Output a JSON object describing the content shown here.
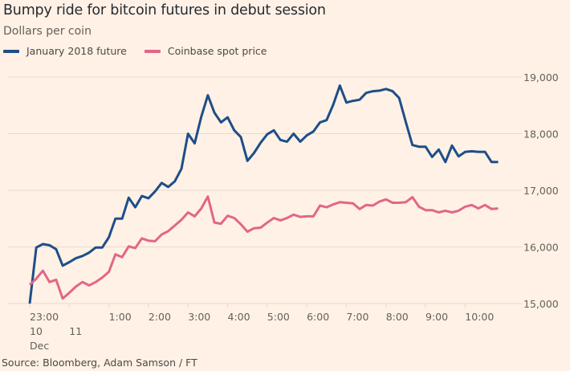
{
  "title": "Bumpy ride for bitcoin futures in debut session",
  "subtitle": "Dollars per coin",
  "source": "Source: Bloomberg, Adam Samson / FT",
  "colors": {
    "background": "#fff1e5",
    "future": "#1d4e89",
    "spot": "#e26688",
    "grid": "#e6d9ce"
  },
  "chart_data": {
    "type": "line",
    "title": "Bumpy ride for bitcoin futures in debut session",
    "ylabel": "Dollars per coin",
    "xlabel": "",
    "ylim": [
      15000,
      19000
    ],
    "yticks": [
      15000,
      16000,
      17000,
      18000,
      19000
    ],
    "ytick_labels": [
      "15,000",
      "16,000",
      "17,000",
      "18,000",
      "19,000"
    ],
    "y_axis_side": "right",
    "grid": true,
    "legend_position": "top-left",
    "x_unit": "hours since 23:00 on 10 Dec",
    "xlim": [
      0,
      12
    ],
    "xticks": [
      {
        "x": 0,
        "lines": [
          "23:00",
          "10",
          "Dec"
        ]
      },
      {
        "x": 1,
        "lines": [
          "",
          "11"
        ]
      },
      {
        "x": 2,
        "lines": [
          "1:00"
        ]
      },
      {
        "x": 3,
        "lines": [
          "2:00"
        ]
      },
      {
        "x": 4,
        "lines": [
          "3:00"
        ]
      },
      {
        "x": 5,
        "lines": [
          "4:00"
        ]
      },
      {
        "x": 6,
        "lines": [
          "5:00"
        ]
      },
      {
        "x": 7,
        "lines": [
          "6:00"
        ]
      },
      {
        "x": 8,
        "lines": [
          "7:00"
        ]
      },
      {
        "x": 9,
        "lines": [
          "8:00"
        ]
      },
      {
        "x": 10,
        "lines": [
          "9:00"
        ]
      },
      {
        "x": 11,
        "lines": [
          "10:00"
        ]
      }
    ],
    "x_step_hours": 0.1667,
    "series": [
      {
        "name": "January 2018 future",
        "key": "future",
        "values": [
          15000,
          15990,
          16050,
          16030,
          15960,
          15670,
          15730,
          15800,
          15840,
          15900,
          15990,
          15990,
          16170,
          16500,
          16500,
          16870,
          16700,
          16900,
          16860,
          16980,
          17130,
          17060,
          17160,
          17380,
          18000,
          17830,
          18300,
          18680,
          18370,
          18200,
          18290,
          18060,
          17940,
          17520,
          17660,
          17840,
          17990,
          18060,
          17890,
          17860,
          18000,
          17860,
          17970,
          18040,
          18200,
          18240,
          18510,
          18850,
          18550,
          18580,
          18600,
          18720,
          18750,
          18760,
          18790,
          18750,
          18630,
          18210,
          17800,
          17770,
          17770,
          17590,
          17720,
          17500,
          17790,
          17600,
          17680,
          17690,
          17680,
          17680,
          17500,
          17500
        ]
      },
      {
        "name": "Coinbase spot price",
        "key": "spot",
        "values": [
          15330,
          15440,
          15580,
          15380,
          15420,
          15090,
          15190,
          15300,
          15380,
          15320,
          15380,
          15460,
          15560,
          15870,
          15820,
          16010,
          15980,
          16150,
          16110,
          16100,
          16220,
          16280,
          16380,
          16480,
          16610,
          16540,
          16680,
          16890,
          16430,
          16410,
          16550,
          16510,
          16400,
          16270,
          16330,
          16340,
          16430,
          16510,
          16470,
          16510,
          16570,
          16530,
          16540,
          16540,
          16730,
          16700,
          16750,
          16790,
          16780,
          16770,
          16670,
          16740,
          16730,
          16800,
          16840,
          16780,
          16780,
          16790,
          16880,
          16710,
          16650,
          16650,
          16610,
          16640,
          16610,
          16640,
          16710,
          16740,
          16680,
          16740,
          16670,
          16680
        ]
      }
    ]
  }
}
